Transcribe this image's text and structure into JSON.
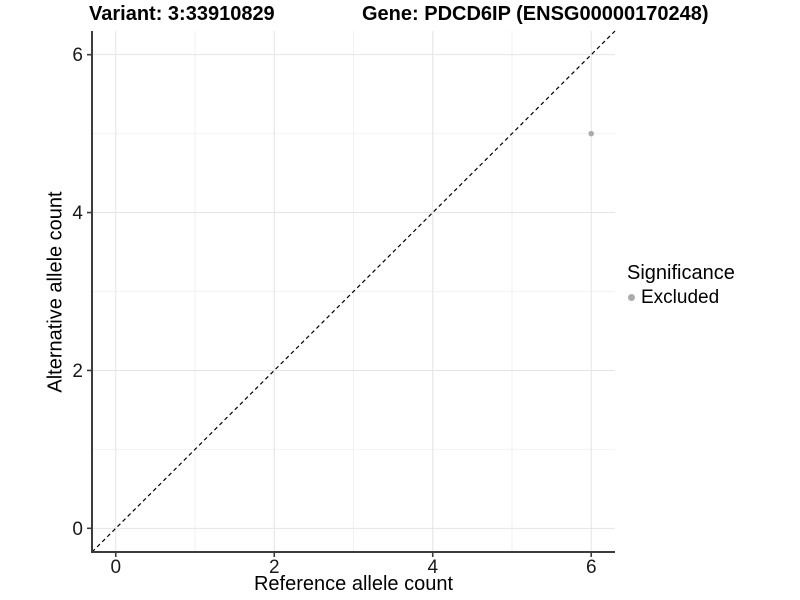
{
  "title": {
    "variant": "Variant: 3:33910829",
    "gene": "Gene: PDCD6IP (ENSG00000170248)"
  },
  "chart_data": {
    "type": "scatter",
    "xlabel": "Reference allele count",
    "ylabel": "Alternative allele count",
    "xlim": [
      -0.3,
      6.3
    ],
    "ylim": [
      -0.3,
      6.3
    ],
    "x_ticks": [
      0,
      2,
      4,
      6
    ],
    "y_ticks": [
      0,
      2,
      4,
      6
    ],
    "x_minor_ticks": [
      1,
      3,
      5
    ],
    "y_minor_ticks": [
      1,
      3,
      5
    ],
    "grid": true,
    "points": [
      {
        "x": 6,
        "y": 5,
        "series": "Excluded"
      }
    ],
    "reference_line": {
      "style": "dashed",
      "from": [
        -0.3,
        -0.3
      ],
      "to": [
        6.3,
        6.3
      ]
    },
    "legend": {
      "title": "Significance",
      "position": "right",
      "items": [
        {
          "label": "Excluded",
          "color": "#ABABAB"
        }
      ]
    },
    "colors": {
      "point": "#ABABAB",
      "grid_major": "#E4E4E4",
      "grid_minor": "#F2F2F2",
      "axis_line": "#3C3C3C",
      "tick_label": "#1A1A1A",
      "dashed_line": "#000000"
    }
  }
}
